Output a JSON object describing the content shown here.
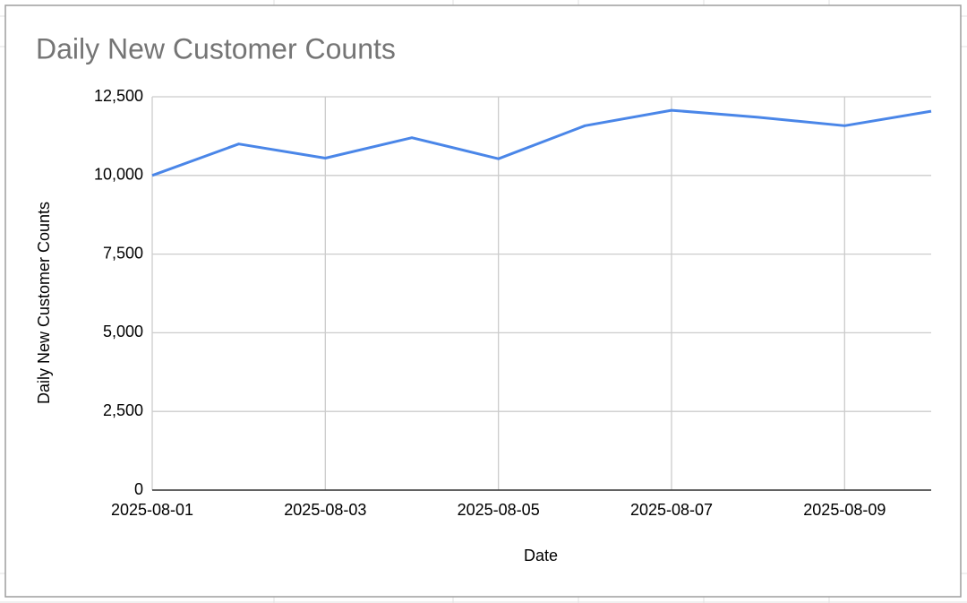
{
  "chart_data": {
    "type": "line",
    "title": "Daily New Customer Counts",
    "x_label": "Date",
    "y_label": "Daily New Customer Counts",
    "x": [
      "2025-08-01",
      "2025-08-02",
      "2025-08-03",
      "2025-08-04",
      "2025-08-05",
      "2025-08-06",
      "2025-08-07",
      "2025-08-08",
      "2025-08-09",
      "2025-08-10"
    ],
    "values": [
      10000,
      11000,
      10550,
      11200,
      10530,
      11580,
      12070,
      11850,
      11580,
      12040
    ],
    "color": "#4a86e8",
    "xlim": [
      "2025-08-01",
      "2025-08-10"
    ],
    "xticks": [
      "2025-08-01",
      "2025-08-03",
      "2025-08-05",
      "2025-08-07",
      "2025-08-09"
    ],
    "ylim": [
      0,
      12500
    ],
    "yticks": [
      0,
      {
        "value": 2500,
        "label": "2,500"
      },
      {
        "value": 5000,
        "label": "5,000"
      },
      {
        "value": 7500,
        "label": "7,500"
      },
      {
        "value": 10000,
        "label": "10,000"
      },
      {
        "value": 12500,
        "label": "12,500"
      }
    ],
    "grid": true
  }
}
